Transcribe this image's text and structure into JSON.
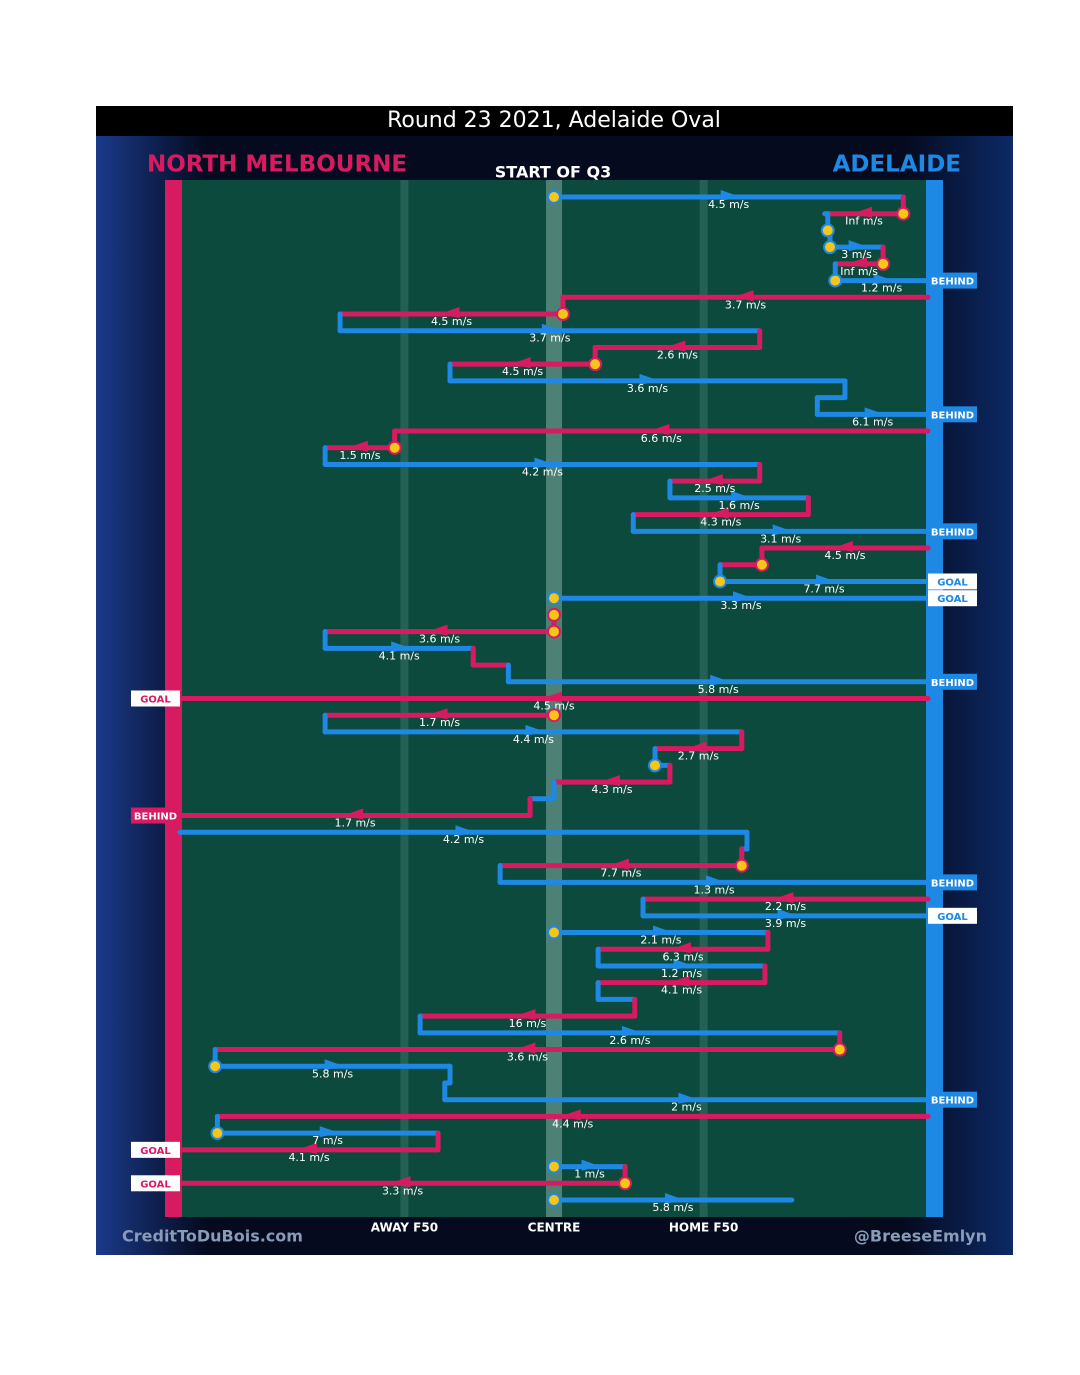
{
  "chart_data": {
    "type": "ball-movement",
    "title": "Round 23 2021, Adelaide Oval",
    "subtitle": "START OF Q3",
    "teams": [
      {
        "name": "NORTH MELBOURNE",
        "color": "#d81b60"
      },
      {
        "name": "ADELAIDE",
        "color": "#1e88e5"
      }
    ],
    "field_lines": [
      {
        "label": "AWAY F50",
        "value": 30
      },
      {
        "label": "CENTRE",
        "value": 50
      },
      {
        "label": "HOME F50",
        "value": 70
      }
    ],
    "xlim": [
      0,
      100
    ],
    "credit_left": "CreditToDuBois.com",
    "credit_right": "@BreeseEmlyn",
    "moves": [
      {
        "team": 1,
        "from": 50,
        "to": 96.7,
        "speed": "4.5 m/s",
        "stoppage": true
      },
      {
        "team": 0,
        "from": 96.7,
        "to": 86.2,
        "speed": "Inf m/s",
        "stoppage": true
      },
      {
        "team": 1,
        "from": 86.6,
        "to": 86.6,
        "stoppage": true
      },
      {
        "team": 1,
        "from": 86.9,
        "to": 94,
        "speed": "3 m/s",
        "stoppage": true
      },
      {
        "team": 0,
        "from": 94,
        "to": 87.6,
        "speed": "Inf m/s",
        "stoppage": true
      },
      {
        "team": 1,
        "from": 87.6,
        "to": 100,
        "speed": "1.2 m/s",
        "result": "BEHIND",
        "stoppage": true
      },
      {
        "team": 0,
        "from": 100,
        "to": 51.2,
        "speed": "3.7 m/s"
      },
      {
        "team": 0,
        "from": 51.2,
        "to": 21.4,
        "speed": "4.5 m/s",
        "stoppage": true
      },
      {
        "team": 1,
        "from": 21.4,
        "to": 77.5,
        "speed": "3.7 m/s"
      },
      {
        "team": 0,
        "from": 77.5,
        "to": 55.5,
        "speed": "2.6 m/s"
      },
      {
        "team": 0,
        "from": 55.5,
        "to": 36.1,
        "speed": "4.5 m/s",
        "stoppage": true
      },
      {
        "team": 1,
        "from": 36.1,
        "to": 88.9,
        "speed": "3.6 m/s"
      },
      {
        "team": 1,
        "from": 88.9,
        "to": 85.2
      },
      {
        "team": 1,
        "from": 85.2,
        "to": 100,
        "speed": "6.1 m/s",
        "result": "BEHIND"
      },
      {
        "team": 0,
        "from": 100,
        "to": 28.7,
        "speed": "6.6 m/s"
      },
      {
        "team": 0,
        "from": 28.7,
        "to": 19.4,
        "speed": "1.5 m/s",
        "stoppage": true
      },
      {
        "team": 1,
        "from": 19.4,
        "to": 77.5,
        "speed": "4.2 m/s"
      },
      {
        "team": 0,
        "from": 77.5,
        "to": 65.5,
        "speed": "2.5 m/s"
      },
      {
        "team": 1,
        "from": 65.5,
        "to": 84,
        "speed": "1.6 m/s"
      },
      {
        "team": 0,
        "from": 84,
        "to": 60.6,
        "speed": "4.3 m/s"
      },
      {
        "team": 1,
        "from": 60.6,
        "to": 100,
        "speed": "3.1 m/s",
        "result": "BEHIND"
      },
      {
        "team": 0,
        "from": 100,
        "to": 77.8,
        "speed": "4.5 m/s"
      },
      {
        "team": 0,
        "from": 77.8,
        "to": 72.2,
        "stoppage": true
      },
      {
        "team": 1,
        "from": 72.2,
        "to": 100,
        "speed": "7.7 m/s",
        "result": "GOAL",
        "stoppage": true
      },
      {
        "team": 1,
        "from": 50,
        "to": 100,
        "speed": "3.3 m/s",
        "result": "GOAL",
        "stoppage": true
      },
      {
        "team": 0,
        "from": 50,
        "to": 50,
        "stoppage": true
      },
      {
        "team": 0,
        "from": 50,
        "to": 19.4,
        "speed": "3.6 m/s",
        "stoppage": true
      },
      {
        "team": 1,
        "from": 19.4,
        "to": 39.2,
        "speed": "4.1 m/s"
      },
      {
        "team": 0,
        "from": 39.2,
        "to": 43.9
      },
      {
        "team": 1,
        "from": 43.9,
        "to": 100,
        "speed": "5.8 m/s",
        "result": "BEHIND"
      },
      {
        "team": 0,
        "from": 100,
        "to": 0,
        "speed": "4.5 m/s",
        "result": "GOAL"
      },
      {
        "team": 0,
        "from": 50,
        "to": 19.4,
        "speed": "1.7 m/s",
        "stoppage": true
      },
      {
        "team": 1,
        "from": 19.4,
        "to": 75.1,
        "speed": "4.4 m/s"
      },
      {
        "team": 0,
        "from": 75.1,
        "to": 63.5,
        "speed": "2.7 m/s"
      },
      {
        "team": 1,
        "from": 63.5,
        "to": 65.5,
        "stoppage": true
      },
      {
        "team": 0,
        "from": 65.5,
        "to": 50,
        "speed": "4.3 m/s"
      },
      {
        "team": 1,
        "from": 50,
        "to": 46.8
      },
      {
        "team": 0,
        "from": 46.8,
        "to": 0,
        "speed": "1.7 m/s",
        "result": "BEHIND"
      },
      {
        "team": 1,
        "from": 0,
        "to": 75.8,
        "speed": "4.2 m/s"
      },
      {
        "team": 1,
        "from": 75.8,
        "to": 75.1
      },
      {
        "team": 0,
        "from": 75.1,
        "to": 42.8,
        "speed": "7.7 m/s",
        "stoppage": true
      },
      {
        "team": 1,
        "from": 42.8,
        "to": 100,
        "speed": "1.3 m/s",
        "result": "BEHIND"
      },
      {
        "team": 0,
        "from": 100,
        "to": 61.9,
        "speed": "2.2 m/s"
      },
      {
        "team": 1,
        "from": 61.9,
        "to": 100,
        "speed": "3.9 m/s",
        "result": "GOAL"
      },
      {
        "team": 1,
        "from": 50,
        "to": 78.6,
        "speed": "2.1 m/s",
        "stoppage": true
      },
      {
        "team": 0,
        "from": 78.6,
        "to": 55.9,
        "speed": "6.3 m/s"
      },
      {
        "team": 1,
        "from": 55.9,
        "to": 78.2,
        "speed": "1.2 m/s"
      },
      {
        "team": 0,
        "from": 78.2,
        "to": 55.9,
        "speed": "4.1 m/s"
      },
      {
        "team": 1,
        "from": 55.9,
        "to": 60.8
      },
      {
        "team": 0,
        "from": 60.8,
        "to": 32.1,
        "speed": "16 m/s"
      },
      {
        "team": 1,
        "from": 32.1,
        "to": 88.2,
        "speed": "2.6 m/s"
      },
      {
        "team": 0,
        "from": 88.2,
        "to": 4.7,
        "speed": "3.6 m/s",
        "stoppage": true
      },
      {
        "team": 1,
        "from": 4.7,
        "to": 36.1,
        "speed": "5.8 m/s",
        "stoppage": true
      },
      {
        "team": 1,
        "from": 36.1,
        "to": 35.4
      },
      {
        "team": 1,
        "from": 35.4,
        "to": 100,
        "speed": "2 m/s",
        "result": "BEHIND"
      },
      {
        "team": 0,
        "from": 100,
        "to": 5,
        "speed": "4.4 m/s"
      },
      {
        "team": 1,
        "from": 5,
        "to": 34.5,
        "speed": "7 m/s",
        "stoppage": true
      },
      {
        "team": 0,
        "from": 34.5,
        "to": 0,
        "speed": "4.1 m/s",
        "result": "GOAL"
      },
      {
        "team": 1,
        "from": 50,
        "to": 59.5,
        "speed": "1 m/s",
        "stoppage": true
      },
      {
        "team": 0,
        "from": 59.5,
        "to": 0,
        "speed": "3.3 m/s",
        "result": "GOAL",
        "stoppage": true
      },
      {
        "team": 1,
        "from": 50,
        "to": 81.8,
        "speed": "5.8 m/s",
        "stoppage": true
      }
    ]
  }
}
